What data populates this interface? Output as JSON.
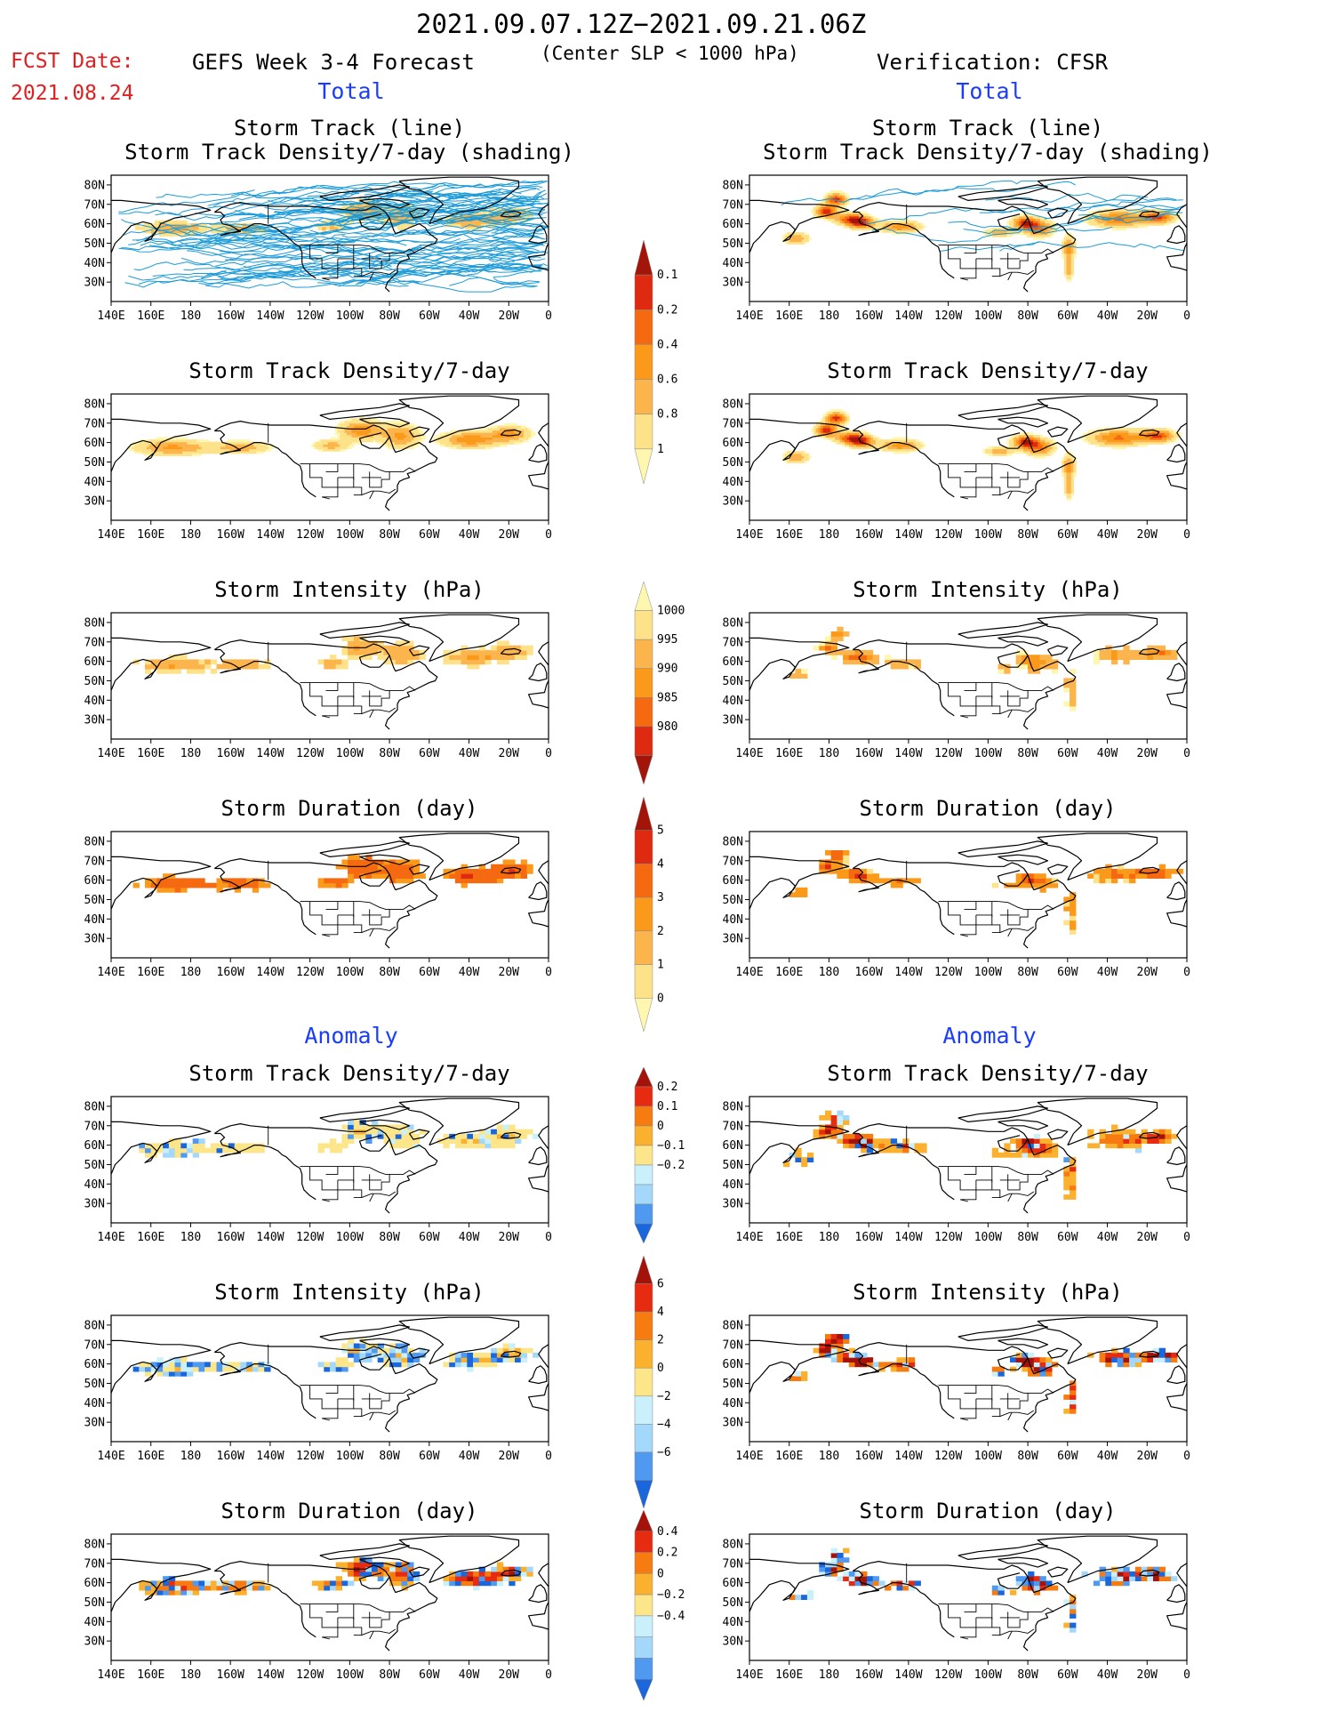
{
  "header": {
    "period": "2021.09.07.12Z−2021.09.21.06Z",
    "fcst_label": "FCST Date:",
    "fcst_date": "2021.08.24",
    "model": "GEFS Week 3-4 Forecast",
    "criterion": "(Center SLP < 1000 hPa)",
    "verification": "Verification: CFSR"
  },
  "sections": {
    "total": "Total",
    "anomaly": "Anomaly"
  },
  "panel_titles": {
    "track_line": "Storm Track (line)",
    "track_shading": "Storm Track Density/7-day (shading)",
    "density": "Storm Track Density/7-day",
    "intensity": "Storm Intensity (hPa)",
    "duration": "Storm Duration (day)"
  },
  "map_axes": {
    "lon_labels": [
      "140E",
      "160E",
      "180",
      "160W",
      "140W",
      "120W",
      "100W",
      "80W",
      "60W",
      "40W",
      "20W",
      "0"
    ],
    "lat_labels": [
      "80N",
      "70N",
      "60N",
      "50N",
      "40N",
      "30N"
    ]
  },
  "colors": {
    "track_line": "#1c9bd8",
    "total_scale": [
      "#fff6b0",
      "#fde28a",
      "#fcb54d",
      "#fb9a1a",
      "#f56a10",
      "#dd2a10",
      "#a41509"
    ],
    "anomaly_scale": [
      "#1a66dd",
      "#4f9af0",
      "#a4d8fa",
      "#c9f0fb",
      "#fde68a",
      "#fbb12d",
      "#f67b10",
      "#e62b10",
      "#a51209"
    ]
  },
  "chart_data": [
    {
      "type": "heatmap",
      "panel": "forecast-total-track",
      "title": "Storm Track (line) / Storm Track Density/7-day (shading)",
      "colorbar": {
        "ticks": [
          "0.1",
          "0.2",
          "0.4",
          "0.6",
          "0.8",
          "1"
        ]
      }
    },
    {
      "type": "heatmap",
      "panel": "verification-total-track",
      "title": "Storm Track (line) / Storm Track Density/7-day (shading)"
    },
    {
      "type": "heatmap",
      "panel": "forecast-total-density",
      "title": "Storm Track Density/7-day"
    },
    {
      "type": "heatmap",
      "panel": "verification-total-density",
      "title": "Storm Track Density/7-day"
    },
    {
      "type": "heatmap",
      "panel": "forecast-total-intensity",
      "title": "Storm Intensity (hPa)",
      "colorbar": {
        "ticks": [
          "1000",
          "995",
          "990",
          "985",
          "980"
        ]
      }
    },
    {
      "type": "heatmap",
      "panel": "verification-total-intensity",
      "title": "Storm Intensity (hPa)"
    },
    {
      "type": "heatmap",
      "panel": "forecast-total-duration",
      "title": "Storm Duration (day)",
      "colorbar": {
        "ticks": [
          "5",
          "4",
          "3",
          "2",
          "1",
          "0"
        ]
      }
    },
    {
      "type": "heatmap",
      "panel": "verification-total-duration",
      "title": "Storm Duration (day)"
    },
    {
      "type": "heatmap",
      "panel": "forecast-anomaly-density",
      "title": "Storm Track Density/7-day",
      "colorbar": {
        "ticks": [
          "0.2",
          "0.1",
          "0",
          "−0.1",
          "−0.2"
        ]
      }
    },
    {
      "type": "heatmap",
      "panel": "verification-anomaly-density",
      "title": "Storm Track Density/7-day"
    },
    {
      "type": "heatmap",
      "panel": "forecast-anomaly-intensity",
      "title": "Storm Intensity (hPa)",
      "colorbar": {
        "ticks": [
          "6",
          "4",
          "2",
          "0",
          "−2",
          "−4",
          "−6"
        ]
      }
    },
    {
      "type": "heatmap",
      "panel": "verification-anomaly-intensity",
      "title": "Storm Intensity (hPa)"
    },
    {
      "type": "heatmap",
      "panel": "forecast-anomaly-duration",
      "title": "Storm Duration (day)",
      "colorbar": {
        "ticks": [
          "0.4",
          "0.2",
          "0",
          "−0.2",
          "−0.4"
        ]
      }
    },
    {
      "type": "heatmap",
      "panel": "verification-anomaly-duration",
      "title": "Storm Duration (day)"
    }
  ]
}
